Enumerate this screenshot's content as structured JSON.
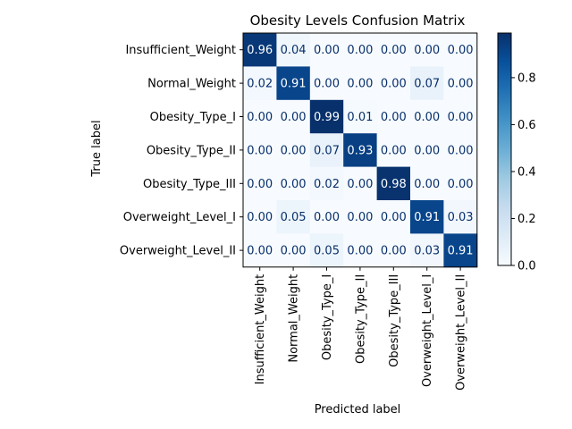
{
  "chart_data": {
    "type": "heatmap",
    "title": "Obesity Levels Confusion Matrix",
    "xlabel": "Predicted label",
    "ylabel": "True label",
    "row_labels": [
      "Insufficient_Weight",
      "Normal_Weight",
      "Obesity_Type_I",
      "Obesity_Type_II",
      "Obesity_Type_III",
      "Overweight_Level_I",
      "Overweight_Level_II"
    ],
    "col_labels": [
      "Insufficient_Weight",
      "Normal_Weight",
      "Obesity_Type_I",
      "Obesity_Type_II",
      "Obesity_Type_III",
      "Overweight_Level_I",
      "Overweight_Level_II"
    ],
    "values": [
      [
        0.96,
        0.04,
        0.0,
        0.0,
        0.0,
        0.0,
        0.0
      ],
      [
        0.02,
        0.91,
        0.0,
        0.0,
        0.0,
        0.07,
        0.0
      ],
      [
        0.0,
        0.0,
        0.99,
        0.01,
        0.0,
        0.0,
        0.0
      ],
      [
        0.0,
        0.0,
        0.07,
        0.93,
        0.0,
        0.0,
        0.0
      ],
      [
        0.0,
        0.0,
        0.02,
        0.0,
        0.98,
        0.0,
        0.0
      ],
      [
        0.0,
        0.05,
        0.0,
        0.0,
        0.0,
        0.91,
        0.03
      ],
      [
        0.0,
        0.0,
        0.05,
        0.0,
        0.0,
        0.03,
        0.91
      ]
    ],
    "value_format": "0.00",
    "colormap": "Blues",
    "colormap_stops": [
      "#f7fbff",
      "#deebf7",
      "#c6dbef",
      "#9ecae1",
      "#6baed6",
      "#4292c6",
      "#2171b5",
      "#08519c",
      "#08306b"
    ],
    "colorbar": {
      "range": [
        0.0,
        0.99
      ],
      "ticks": [
        0.0,
        0.2,
        0.4,
        0.6,
        0.8
      ],
      "tick_labels": [
        "0.0",
        "0.2",
        "0.4",
        "0.6",
        "0.8"
      ]
    },
    "grid": false
  }
}
